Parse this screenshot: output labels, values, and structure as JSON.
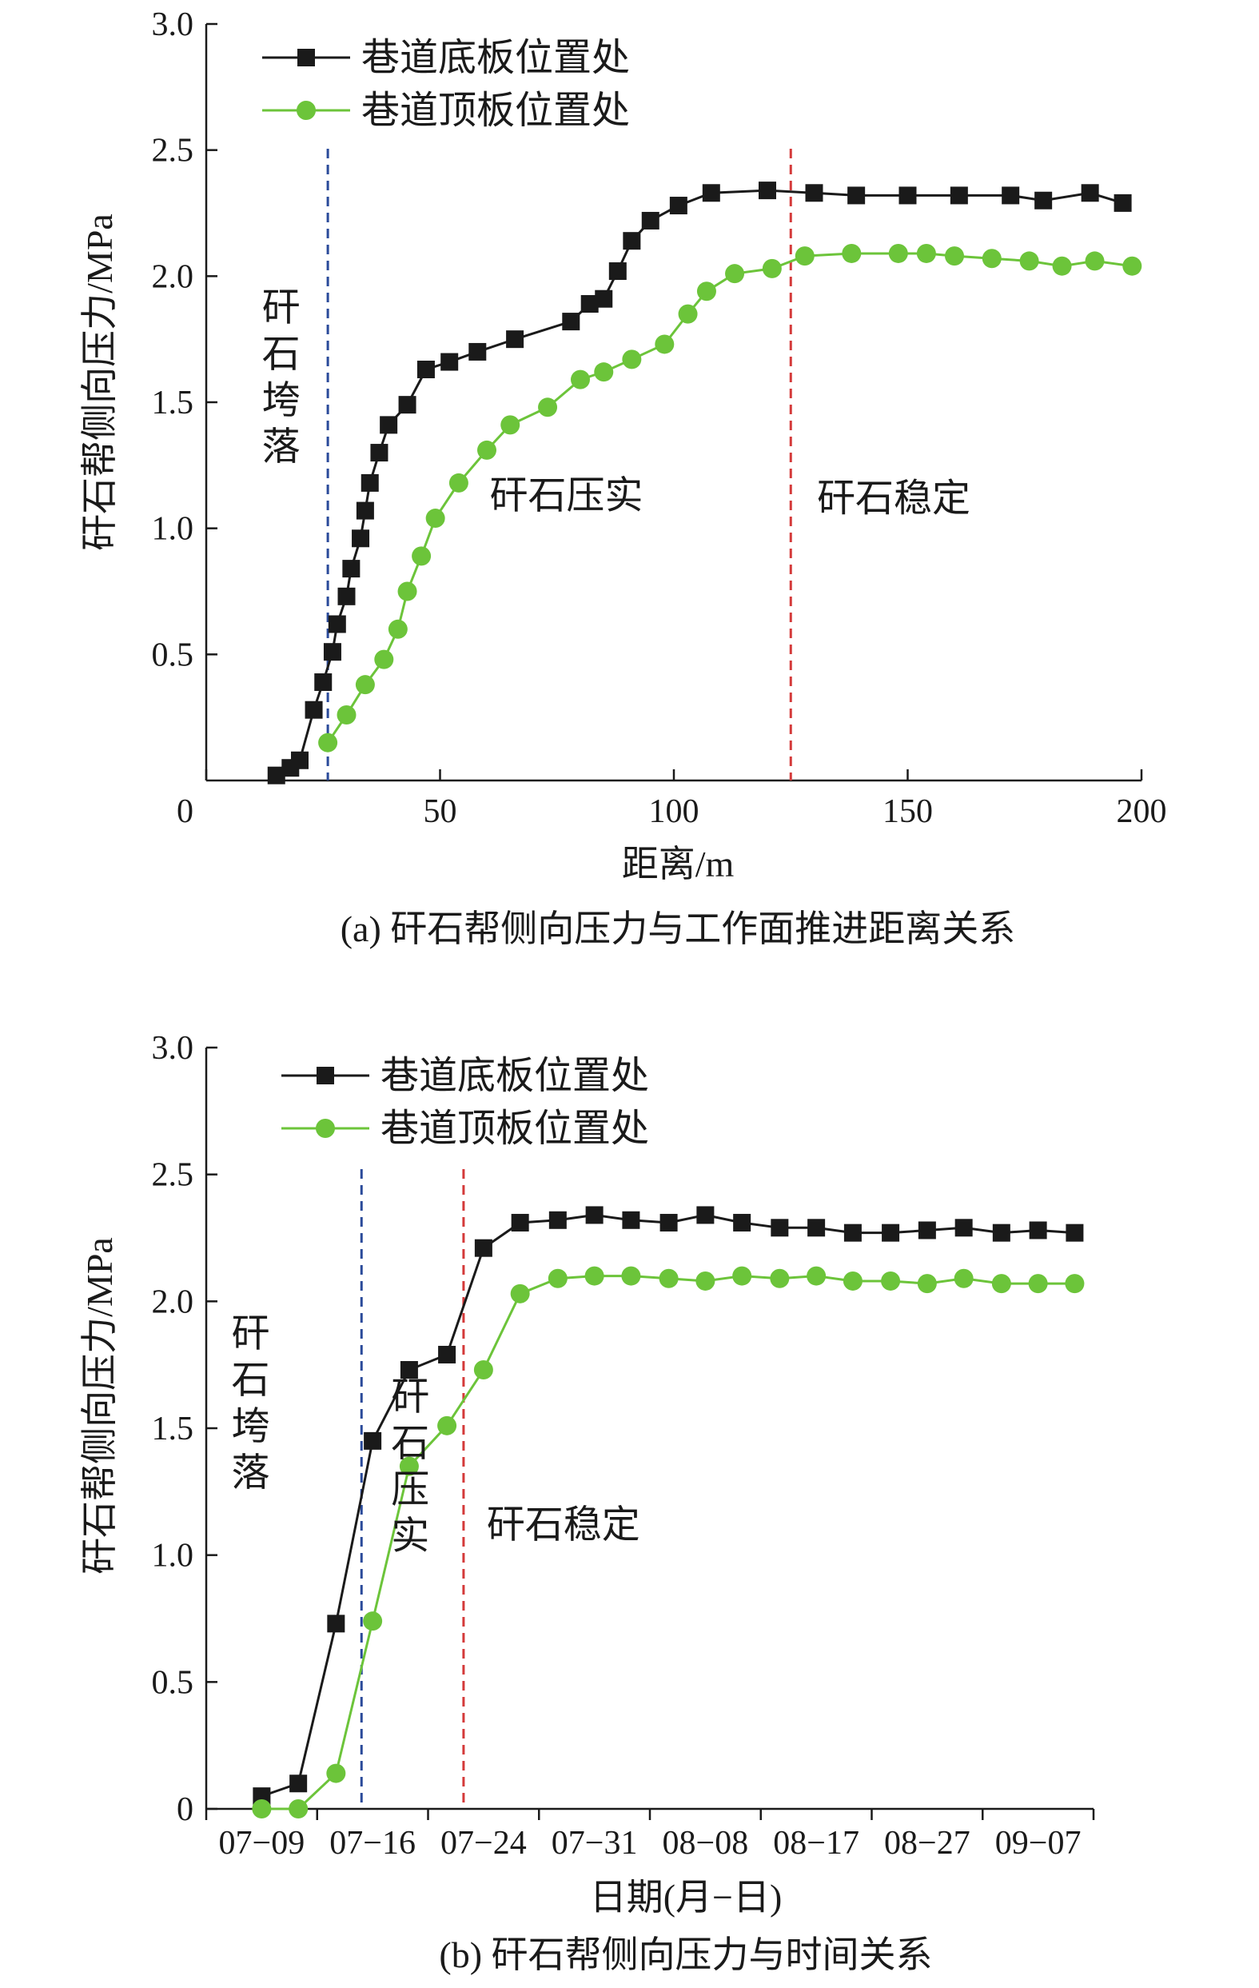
{
  "colors": {
    "floor": "#1a1a1a",
    "roof": "#6cc43a",
    "blue_line": "#2a4a9a",
    "red_line": "#d43a3a",
    "axis": "#1a1a1a"
  },
  "chart_data": [
    {
      "type": "line",
      "caption": "(a) 矸石帮侧向压力与工作面推进距离关系",
      "xlabel": "距离/m",
      "ylabel": "矸石帮侧向压力/MPa",
      "xlim": [
        0,
        200
      ],
      "ylim": [
        0,
        3.0
      ],
      "x_ticks": [
        "0",
        "50",
        "100",
        "150",
        "200"
      ],
      "y_ticks": [
        "0.5",
        "1.0",
        "1.5",
        "2.0",
        "2.5",
        "3.0"
      ],
      "legend": {
        "position": "top-left",
        "entries": [
          "巷道底板位置处",
          "巷道顶板位置处"
        ]
      },
      "vlines": [
        {
          "x": 26,
          "color": "blue"
        },
        {
          "x": 125,
          "color": "red"
        }
      ],
      "annotations": [
        {
          "text": "矸石垮落",
          "orientation": "vertical",
          "x": 16,
          "y": 1.6
        },
        {
          "text": "矸石压实",
          "orientation": "horizontal",
          "x": 77,
          "y": 1.13
        },
        {
          "text": "矸石稳定",
          "orientation": "horizontal",
          "x": 147,
          "y": 1.12
        }
      ],
      "series": [
        {
          "name": "巷道底板位置处",
          "marker": "square",
          "color": "#1a1a1a",
          "x": [
            15,
            18,
            20,
            23,
            25,
            27,
            28,
            30,
            31,
            33,
            34,
            35,
            37,
            39,
            43,
            47,
            52,
            58,
            66,
            78,
            82,
            85,
            88,
            91,
            95,
            101,
            108,
            120,
            130,
            139,
            150,
            161,
            172,
            179,
            189,
            196
          ],
          "y": [
            0.02,
            0.05,
            0.08,
            0.28,
            0.39,
            0.51,
            0.62,
            0.73,
            0.84,
            0.96,
            1.07,
            1.18,
            1.3,
            1.41,
            1.49,
            1.63,
            1.66,
            1.7,
            1.75,
            1.82,
            1.89,
            1.91,
            2.02,
            2.14,
            2.22,
            2.28,
            2.33,
            2.34,
            2.33,
            2.32,
            2.32,
            2.32,
            2.32,
            2.3,
            2.33,
            2.29
          ]
        },
        {
          "name": "巷道顶板位置处",
          "marker": "circle",
          "color": "#6cc43a",
          "x": [
            26,
            30,
            34,
            38,
            41,
            43,
            46,
            49,
            54,
            60,
            65,
            73,
            80,
            85,
            91,
            98,
            103,
            107,
            113,
            121,
            128,
            138,
            148,
            154,
            160,
            168,
            176,
            183,
            190,
            198
          ],
          "y": [
            0.15,
            0.26,
            0.38,
            0.48,
            0.6,
            0.75,
            0.89,
            1.04,
            1.18,
            1.31,
            1.41,
            1.48,
            1.59,
            1.62,
            1.67,
            1.73,
            1.85,
            1.94,
            2.01,
            2.03,
            2.08,
            2.09,
            2.09,
            2.09,
            2.08,
            2.07,
            2.06,
            2.04,
            2.06,
            2.04
          ]
        }
      ]
    },
    {
      "type": "line",
      "caption": "(b) 矸石帮侧向压力与时间关系",
      "xlabel": "日期(月−日)",
      "ylabel": "矸石帮侧向压力/MPa",
      "ylim": [
        0,
        3.0
      ],
      "categories": [
        "07−09",
        "07−16",
        "07−24",
        "07−31",
        "08−08",
        "08−17",
        "08−27",
        "09−07"
      ],
      "y_ticks": [
        "0",
        "0.5",
        "1.0",
        "1.5",
        "2.0",
        "2.5",
        "3.0"
      ],
      "legend": {
        "position": "top-left",
        "entries": [
          "巷道底板位置处",
          "巷道顶板位置处"
        ]
      },
      "vlines": [
        {
          "x": 1.4,
          "color": "blue"
        },
        {
          "x": 2.32,
          "color": "red"
        }
      ],
      "annotations": [
        {
          "text": "矸石垮落",
          "orientation": "vertical",
          "x": 0.4,
          "y": 1.6
        },
        {
          "text": "矸石压实",
          "orientation": "vertical",
          "x": 1.84,
          "y": 1.35
        },
        {
          "text": "矸石稳定",
          "orientation": "horizontal",
          "x": 3.22,
          "y": 1.12
        }
      ],
      "series": [
        {
          "name": "巷道底板位置处",
          "marker": "square",
          "color": "#1a1a1a",
          "x": [
            0.5,
            0.83,
            1.17,
            1.5,
            1.83,
            2.17,
            2.5,
            2.83,
            3.17,
            3.5,
            3.83,
            4.17,
            4.5,
            4.83,
            5.17,
            5.5,
            5.83,
            6.17,
            6.5,
            6.83,
            7.17,
            7.5,
            7.83
          ],
          "y": [
            0.05,
            0.1,
            0.73,
            1.45,
            1.73,
            1.79,
            2.21,
            2.31,
            2.32,
            2.34,
            2.32,
            2.31,
            2.34,
            2.31,
            2.29,
            2.29,
            2.27,
            2.27,
            2.28,
            2.29,
            2.27,
            2.28,
            2.27
          ]
        },
        {
          "name": "巷道顶板位置处",
          "marker": "circle",
          "color": "#6cc43a",
          "x": [
            0.5,
            0.83,
            1.17,
            1.5,
            1.83,
            2.17,
            2.5,
            2.83,
            3.17,
            3.5,
            3.83,
            4.17,
            4.5,
            4.83,
            5.17,
            5.5,
            5.83,
            6.17,
            6.5,
            6.83,
            7.17,
            7.5,
            7.83
          ],
          "y": [
            0.0,
            0.0,
            0.14,
            0.74,
            1.35,
            1.51,
            1.73,
            2.03,
            2.09,
            2.1,
            2.1,
            2.09,
            2.08,
            2.1,
            2.09,
            2.1,
            2.08,
            2.08,
            2.07,
            2.09,
            2.07,
            2.07,
            2.07
          ]
        }
      ]
    }
  ]
}
